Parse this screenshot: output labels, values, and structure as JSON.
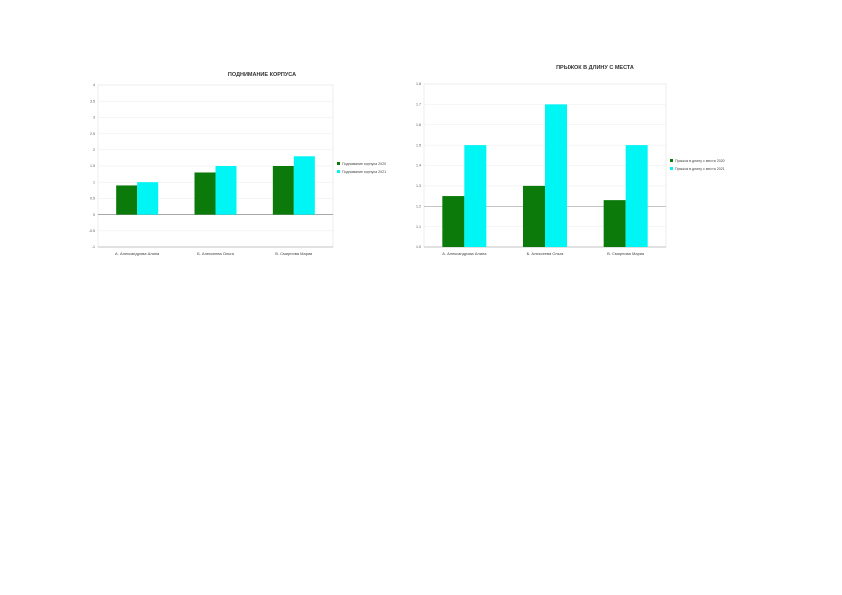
{
  "chart_data": [
    {
      "type": "bar",
      "title": "ПОДНИМАНИЕ КОРПУСА",
      "categories": [
        "А. Александрова Алина",
        "Б. Алексеева Ольга",
        "В. Смирнова Мария"
      ],
      "series": [
        {
          "name": "Поднимание корпуса 2020",
          "values": [
            0.9,
            1.3,
            1.5
          ],
          "color": "#0b7a0b"
        },
        {
          "name": "Поднимание корпуса 2021",
          "values": [
            1.0,
            1.5,
            1.8
          ],
          "color": "#00f5f5"
        }
      ],
      "yticks": [
        "-1",
        "-0.5",
        "0",
        "0.5",
        "1",
        "1.5",
        "2",
        "2.5",
        "3",
        "3.5",
        "4"
      ],
      "ylim": [
        -1,
        4
      ],
      "legend": "right",
      "grid": true
    },
    {
      "type": "bar",
      "title": "ПРЫЖОК В ДЛИНУ С МЕСТА",
      "categories": [
        "А. Александрова Алина",
        "Б. Алексеева Ольга",
        "В. Смирнова Мария"
      ],
      "series": [
        {
          "name": "Прыжок в длину с места 2020",
          "values": [
            1.25,
            1.3,
            1.23
          ],
          "color": "#0b7a0b"
        },
        {
          "name": "Прыжок в длину с места 2021",
          "values": [
            1.5,
            1.7,
            1.5
          ],
          "color": "#00f5f5"
        }
      ],
      "yticks": [
        "1.0",
        "1.1",
        "1.2",
        "1.3",
        "1.4",
        "1.5",
        "1.6",
        "1.7",
        "1.8"
      ],
      "ylim": [
        1.0,
        1.8
      ],
      "legend": "right",
      "grid": true
    }
  ]
}
